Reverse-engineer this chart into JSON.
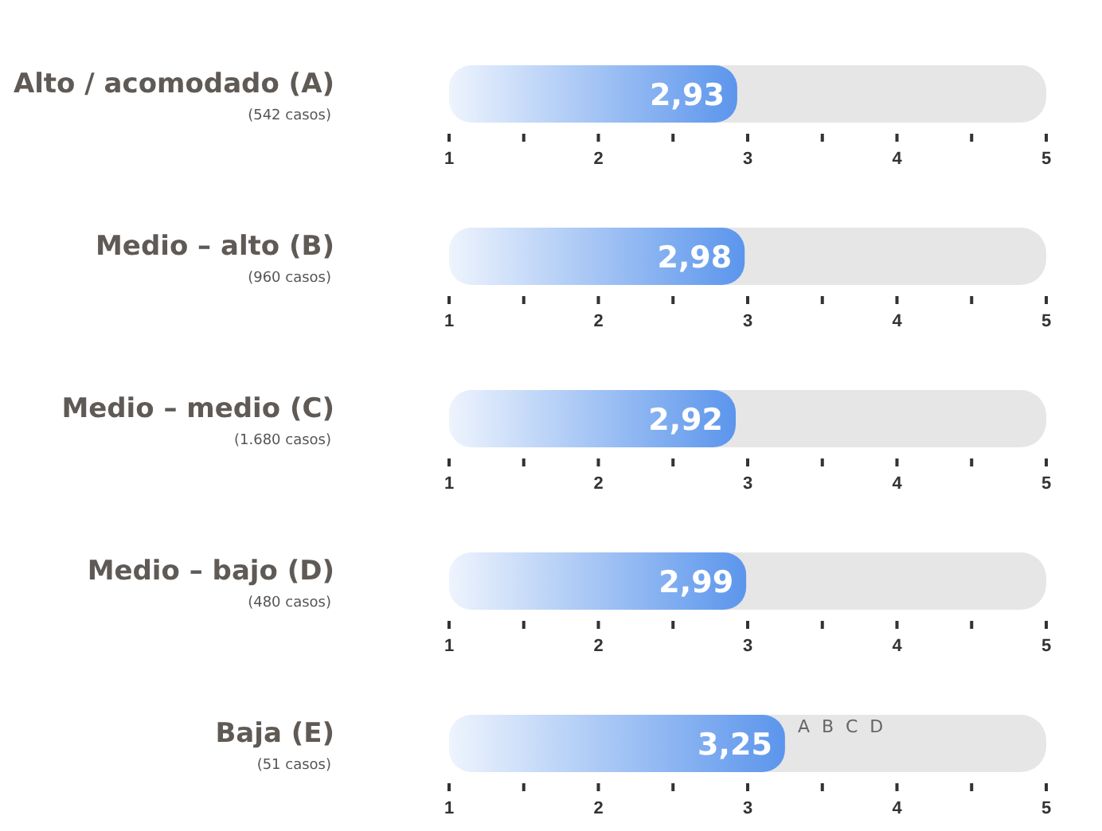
{
  "chart_data": [
    {
      "type": "bar",
      "orientation": "horizontal",
      "categories": [
        "Alto / acomodado (A)"
      ],
      "values": [
        2.93
      ],
      "value_labels": [
        "2,93"
      ],
      "color": "#5b95ec",
      "xlim": [
        1,
        5
      ],
      "xticks": [
        1,
        2,
        3,
        4,
        5
      ],
      "annotations": [
        "(542 casos)"
      ]
    },
    {
      "type": "bar",
      "orientation": "horizontal",
      "categories": [
        "Medio – alto (B)"
      ],
      "values": [
        2.98
      ],
      "value_labels": [
        "2,98"
      ],
      "color": "#5b95ec",
      "xlim": [
        1,
        5
      ],
      "xticks": [
        1,
        2,
        3,
        4,
        5
      ],
      "annotations": [
        "(960 casos)"
      ]
    },
    {
      "type": "bar",
      "orientation": "horizontal",
      "categories": [
        "Medio – medio (C)"
      ],
      "values": [
        2.92
      ],
      "value_labels": [
        "2,92"
      ],
      "color": "#5b95ec",
      "xlim": [
        1,
        5
      ],
      "xticks": [
        1,
        2,
        3,
        4,
        5
      ],
      "annotations": [
        "(1.680 casos)"
      ]
    },
    {
      "type": "bar",
      "orientation": "horizontal",
      "categories": [
        "Medio – bajo (D)"
      ],
      "values": [
        2.99
      ],
      "value_labels": [
        "2,99"
      ],
      "color": "#5b95ec",
      "xlim": [
        1,
        5
      ],
      "xticks": [
        1,
        2,
        3,
        4,
        5
      ],
      "annotations": [
        "(480 casos)"
      ]
    },
    {
      "type": "bar",
      "orientation": "horizontal",
      "categories": [
        "Baja (E)"
      ],
      "values": [
        3.25
      ],
      "value_labels": [
        "3,25"
      ],
      "color": "#5b95ec",
      "xlim": [
        1,
        5
      ],
      "xticks": [
        1,
        2,
        3,
        4,
        5
      ],
      "annotations": [
        "(51 casos)",
        "A B C D"
      ]
    }
  ]
}
